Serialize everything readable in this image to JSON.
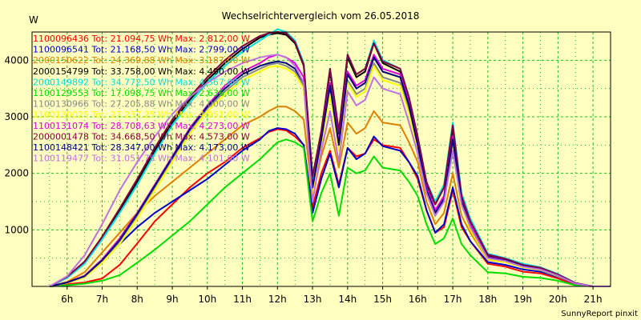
{
  "chart_data": {
    "type": "line",
    "title": "Wechselrichtervergleich vom 26.05.2018",
    "ylabel": "W",
    "footer": "SunnyReport pinxit",
    "ylim": [
      0,
      4500
    ],
    "y_ticks": [
      1000,
      2000,
      3000,
      4000
    ],
    "x_tick_labels": [
      "6h",
      "7h",
      "8h",
      "9h",
      "10h",
      "11h",
      "12h",
      "13h",
      "14h",
      "15h",
      "16h",
      "17h",
      "18h",
      "19h",
      "20h",
      "21h"
    ],
    "grid": true,
    "legend_placement": "top-left",
    "x_hours": [
      5.5,
      6.0,
      6.5,
      7.0,
      7.5,
      8.0,
      8.5,
      9.0,
      9.5,
      10.0,
      10.5,
      11.0,
      11.5,
      11.75,
      12.0,
      12.25,
      12.5,
      12.75,
      13.0,
      13.25,
      13.5,
      13.75,
      14.0,
      14.25,
      14.5,
      14.75,
      15.0,
      15.5,
      15.75,
      16.0,
      16.25,
      16.5,
      16.75,
      17.0,
      17.25,
      17.5,
      18.0,
      18.5,
      19.0,
      19.5,
      20.0,
      20.5,
      21.0,
      21.5
    ],
    "series": [
      {
        "name": "1100096436 Tot: 21.094,75 Wh Max: 2.812,00 W",
        "color": "#ff0000",
        "values": [
          0,
          40,
          70,
          140,
          380,
          760,
          1150,
          1450,
          1750,
          2000,
          2200,
          2450,
          2620,
          2730,
          2780,
          2760,
          2650,
          2500,
          1400,
          2000,
          2400,
          1800,
          2450,
          2300,
          2350,
          2600,
          2500,
          2450,
          2200,
          1900,
          1350,
          950,
          1050,
          1700,
          1050,
          800,
          400,
          350,
          260,
          230,
          140,
          30,
          0,
          0
        ]
      },
      {
        "name": "1100096541 Tot: 21.168,50 Wh Max: 2.799,00 W",
        "color": "#0000cc",
        "values": [
          0,
          60,
          180,
          430,
          750,
          1050,
          1300,
          1500,
          1700,
          1900,
          2150,
          2400,
          2600,
          2750,
          2800,
          2780,
          2700,
          2500,
          1300,
          1900,
          2350,
          1750,
          2450,
          2250,
          2350,
          2650,
          2480,
          2400,
          2200,
          1950,
          1350,
          950,
          1100,
          1750,
          1100,
          800,
          430,
          380,
          300,
          260,
          170,
          50,
          0,
          0
        ]
      },
      {
        "name": "2000150622 Tot: 24.369,88 Wh Max: 3.187,00 W",
        "color": "#e08000",
        "values": [
          0,
          80,
          250,
          600,
          950,
          1300,
          1600,
          1850,
          2100,
          2350,
          2600,
          2850,
          3000,
          3100,
          3180,
          3180,
          3100,
          2950,
          1600,
          2300,
          2800,
          2100,
          2900,
          2700,
          2800,
          3100,
          2900,
          2850,
          2550,
          2200,
          1500,
          1100,
          1300,
          2000,
          1250,
          950,
          470,
          430,
          340,
          300,
          200,
          60,
          0,
          0
        ]
      },
      {
        "name": "2000154799 Tot: 33.758,00 Wh Max: 4.490,00 W",
        "color": "#000000",
        "values": [
          0,
          160,
          420,
          850,
          1350,
          1850,
          2400,
          2900,
          3300,
          3650,
          3950,
          4200,
          4400,
          4450,
          4480,
          4450,
          4300,
          3900,
          1900,
          2700,
          3800,
          2700,
          4050,
          3700,
          3800,
          4300,
          3950,
          3800,
          3300,
          2600,
          1800,
          1450,
          1750,
          2800,
          1600,
          1150,
          550,
          480,
          370,
          320,
          200,
          60,
          0,
          0
        ]
      },
      {
        "name": "2000149892 Tot: 34.772,50 Wh Max: 4.567,00 W",
        "color": "#00dddd",
        "values": [
          0,
          150,
          400,
          830,
          1300,
          1800,
          2350,
          2850,
          3250,
          3600,
          3900,
          4150,
          4350,
          4450,
          4550,
          4500,
          4350,
          3950,
          1900,
          2750,
          3850,
          2750,
          4100,
          3750,
          3850,
          4350,
          4000,
          3850,
          3350,
          2650,
          1850,
          1500,
          1800,
          2900,
          1650,
          1200,
          580,
          500,
          400,
          340,
          220,
          60,
          0,
          0
        ]
      },
      {
        "name": "1100129553 Tot: 17.098,75 Wh Max: 2.636,00 W",
        "color": "#00dd00",
        "values": [
          0,
          20,
          50,
          100,
          200,
          420,
          650,
          900,
          1150,
          1450,
          1750,
          2000,
          2250,
          2400,
          2550,
          2600,
          2550,
          2450,
          1150,
          1650,
          2000,
          1250,
          2100,
          2000,
          2050,
          2300,
          2100,
          2050,
          1850,
          1600,
          1100,
          750,
          850,
          1200,
          750,
          550,
          250,
          230,
          170,
          150,
          100,
          20,
          0,
          0
        ]
      },
      {
        "name": "1100130966 Tot: 27.205,88 Wh Max: 4.000,00 W",
        "color": "#888888",
        "values": [
          0,
          70,
          180,
          450,
          800,
          1250,
          1750,
          2250,
          2750,
          3150,
          3450,
          3700,
          3850,
          3920,
          3950,
          3900,
          3800,
          3550,
          1700,
          2550,
          3450,
          2450,
          3650,
          3400,
          3500,
          3950,
          3700,
          3600,
          3100,
          2450,
          1700,
          1300,
          1550,
          2550,
          1500,
          1050,
          500,
          450,
          350,
          300,
          190,
          50,
          0,
          0
        ]
      },
      {
        "name": "1100130025 Tot: 27.237,25 Wh Max: 4.051,00 W",
        "color": "#ffff00",
        "values": [
          0,
          60,
          160,
          420,
          750,
          1200,
          1700,
          2200,
          2700,
          3100,
          3400,
          3650,
          3800,
          3880,
          3900,
          3850,
          3750,
          3500,
          1650,
          2500,
          3400,
          2400,
          3600,
          3350,
          3450,
          3900,
          3650,
          3550,
          3050,
          2400,
          1650,
          1250,
          1500,
          2500,
          1450,
          1000,
          480,
          430,
          340,
          290,
          180,
          50,
          0,
          0
        ]
      },
      {
        "name": "1100131074 Tot: 28.708,63 Wh Max: 4.273,00 W",
        "color": "#dd00dd",
        "values": [
          0,
          70,
          190,
          480,
          850,
          1300,
          1800,
          2300,
          2800,
          3200,
          3550,
          3800,
          3950,
          4050,
          4100,
          4050,
          3950,
          3700,
          1750,
          2650,
          3600,
          2550,
          3800,
          3550,
          3650,
          4100,
          3850,
          3750,
          3250,
          2550,
          1750,
          1350,
          1600,
          2650,
          1550,
          1100,
          520,
          470,
          370,
          310,
          190,
          50,
          0,
          0
        ]
      },
      {
        "name": "2000001478 Tot: 34.668,50 Wh Max: 4.573,00 W",
        "color": "#800040",
        "values": [
          0,
          170,
          440,
          880,
          1380,
          1900,
          2450,
          2950,
          3350,
          3700,
          4000,
          4250,
          4430,
          4480,
          4500,
          4480,
          4320,
          3920,
          1950,
          2750,
          3850,
          2750,
          4100,
          3750,
          3850,
          4300,
          3980,
          3850,
          3350,
          2650,
          1850,
          1450,
          1750,
          2850,
          1600,
          1150,
          560,
          490,
          380,
          330,
          210,
          60,
          0,
          0
        ]
      },
      {
        "name": "1100148421 Tot: 28.347,00 Wh Max: 4.173,00 W",
        "color": "#000080",
        "values": [
          0,
          70,
          180,
          460,
          820,
          1280,
          1780,
          2280,
          2780,
          3180,
          3500,
          3750,
          3900,
          3950,
          3980,
          3950,
          3850,
          3600,
          1750,
          2600,
          3550,
          2500,
          3750,
          3500,
          3600,
          4050,
          3800,
          3700,
          3200,
          2500,
          1700,
          1300,
          1550,
          2600,
          1500,
          1050,
          510,
          460,
          360,
          300,
          190,
          50,
          0,
          0
        ]
      },
      {
        "name": "1100119477 Tot: 31.051,75 Wh Max: 4.101,00 W",
        "color": "#c070e0",
        "values": [
          0,
          180,
          550,
          1100,
          1700,
          2200,
          2650,
          3050,
          3350,
          3600,
          3800,
          3950,
          4050,
          4080,
          4100,
          4050,
          3900,
          3600,
          1500,
          2400,
          3100,
          2200,
          3450,
          3200,
          3300,
          3700,
          3500,
          3400,
          2900,
          2350,
          1650,
          1250,
          1500,
          2400,
          1450,
          1050,
          500,
          450,
          350,
          300,
          190,
          50,
          0,
          0
        ]
      }
    ]
  }
}
